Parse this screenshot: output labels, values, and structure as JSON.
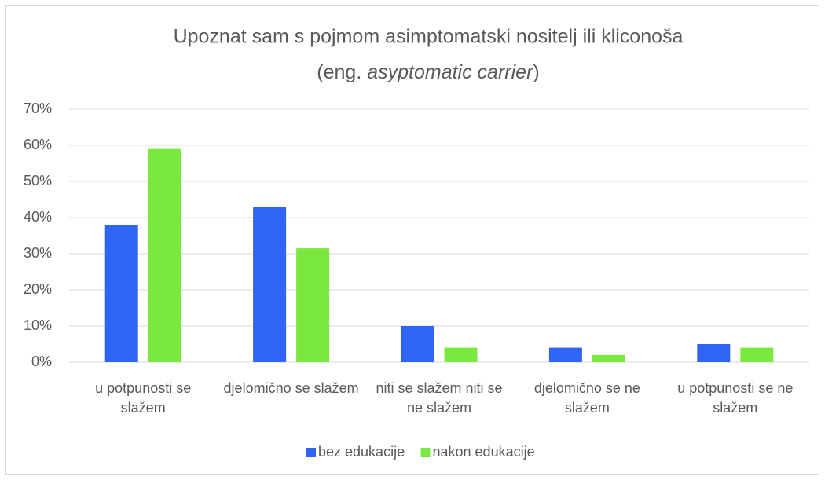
{
  "chart_data": {
    "type": "bar",
    "title": "Upoznat sam s pojmom asimptomatski nositelj ili kliconoša",
    "subtitle": [
      "(eng. ",
      "asyptomatic carrier",
      ")"
    ],
    "categories": [
      "u potpunosti se slažem",
      "djelomično se slažem",
      "niti se slažem niti se ne slažem",
      "djelomično se ne slažem",
      "u potpunosti se ne slažem"
    ],
    "series": [
      {
        "name": "bez edukacije",
        "color": "#2f65f5",
        "values": [
          38,
          43,
          10,
          4,
          5
        ]
      },
      {
        "name": "nakon edukacije",
        "color": "#7be840",
        "values": [
          59,
          31.5,
          4,
          2,
          4
        ]
      }
    ],
    "ylim": [
      0,
      70
    ],
    "yticks": [
      {
        "value": 0,
        "label": "0%"
      },
      {
        "value": 10,
        "label": "10%"
      },
      {
        "value": 20,
        "label": "20%"
      },
      {
        "value": 30,
        "label": "30%"
      },
      {
        "value": 40,
        "label": "40%"
      },
      {
        "value": 50,
        "label": "50%"
      },
      {
        "value": 60,
        "label": "60%"
      },
      {
        "value": 70,
        "label": "70%"
      }
    ],
    "grid": true,
    "legend": "bottom"
  }
}
